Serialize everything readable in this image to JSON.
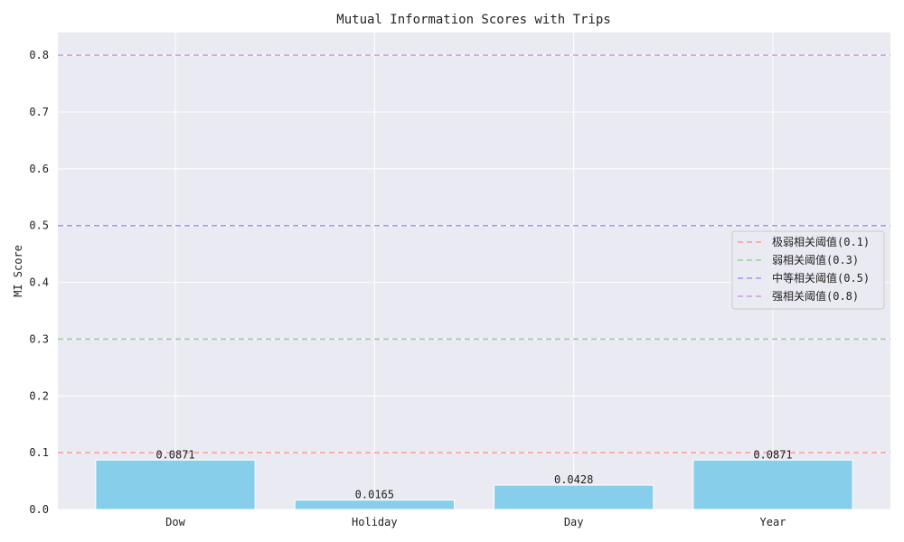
{
  "chart_data": {
    "type": "bar",
    "title": "Mutual Information Scores with Trips",
    "xlabel": "",
    "ylabel": "MI Score",
    "categories": [
      "Dow",
      "Holiday",
      "Day",
      "Year"
    ],
    "values": [
      0.0871,
      0.0165,
      0.0428,
      0.0871
    ],
    "data_labels": [
      "0.0871",
      "0.0165",
      "0.0428",
      "0.0871"
    ],
    "ylim": [
      0,
      0.84
    ],
    "yticks": [
      0.0,
      0.1,
      0.2,
      0.3,
      0.4,
      0.5,
      0.6,
      0.7,
      0.8
    ],
    "ytick_labels": [
      "0.0",
      "0.1",
      "0.2",
      "0.3",
      "0.4",
      "0.5",
      "0.6",
      "0.7",
      "0.8"
    ],
    "bar_color": "#87ceeb",
    "background": "#eaeaf2",
    "grid": true,
    "legend_position": "center-right",
    "threshold_lines": [
      {
        "label": "极弱相关阈值(0.1)",
        "value": 0.1,
        "color": "#ff9999"
      },
      {
        "label": "弱相关阈值(0.3)",
        "value": 0.3,
        "color": "#99cc99"
      },
      {
        "label": "中等相关阈值(0.5)",
        "value": 0.5,
        "color": "#9999ff"
      },
      {
        "label": "强相关阈值(0.8)",
        "value": 0.8,
        "color": "#c9a0dc"
      }
    ]
  }
}
